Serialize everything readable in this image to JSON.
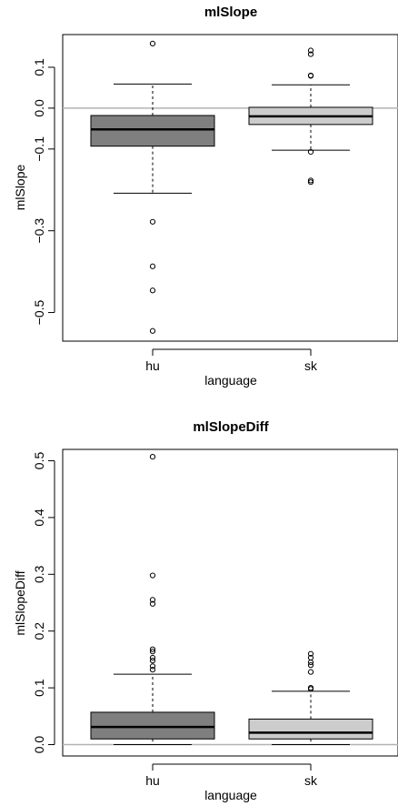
{
  "colors": {
    "hu_box": "#7f7f7f",
    "sk_box": "#cccccc",
    "reference_line": "#b3b3b3",
    "ink": "#000000",
    "background": "#ffffff"
  },
  "chart_data": [
    {
      "type": "box",
      "title": "mlSlope",
      "xlabel": "language",
      "ylabel": "mlSlope",
      "categories": [
        "hu",
        "sk"
      ],
      "yticks": [
        -0.5,
        -0.3,
        -0.1,
        0.0,
        0.1
      ],
      "ytick_labels": [
        "−0.5",
        "−0.3",
        "−0.1",
        "0.0",
        "0.1"
      ],
      "ylim": [
        -0.57,
        0.18
      ],
      "reference_line": 0.0,
      "grid": false,
      "series": [
        {
          "category": "hu",
          "whisker_low": -0.208,
          "q1": -0.093,
          "median": -0.052,
          "q3": -0.018,
          "whisker_high": 0.059,
          "outliers": [
            0.158,
            -0.278,
            -0.387,
            -0.446,
            -0.545
          ]
        },
        {
          "category": "sk",
          "whisker_low": -0.103,
          "q1": -0.04,
          "median": -0.02,
          "q3": 0.002,
          "whisker_high": 0.057,
          "outliers": [
            0.141,
            0.132,
            0.08,
            0.079,
            -0.107,
            -0.177,
            -0.181
          ]
        }
      ]
    },
    {
      "type": "box",
      "title": "mlSlopeDiff",
      "xlabel": "language",
      "ylabel": "mlSlopeDiff",
      "categories": [
        "hu",
        "sk"
      ],
      "yticks": [
        0.0,
        0.1,
        0.2,
        0.3,
        0.4,
        0.5
      ],
      "ytick_labels": [
        "0.0",
        "0.1",
        "0.2",
        "0.3",
        "0.4",
        "0.5"
      ],
      "ylim": [
        -0.02,
        0.52
      ],
      "reference_line": 0.0,
      "grid": false,
      "series": [
        {
          "category": "hu",
          "whisker_low": 0.0,
          "q1": 0.01,
          "median": 0.031,
          "q3": 0.057,
          "whisker_high": 0.124,
          "outliers": [
            0.507,
            0.298,
            0.255,
            0.248,
            0.168,
            0.164,
            0.153,
            0.148,
            0.138,
            0.132
          ]
        },
        {
          "category": "sk",
          "whisker_low": 0.0,
          "q1": 0.01,
          "median": 0.021,
          "q3": 0.045,
          "whisker_high": 0.094,
          "outliers": [
            0.16,
            0.153,
            0.145,
            0.14,
            0.128,
            0.1,
            0.098
          ]
        }
      ]
    }
  ]
}
